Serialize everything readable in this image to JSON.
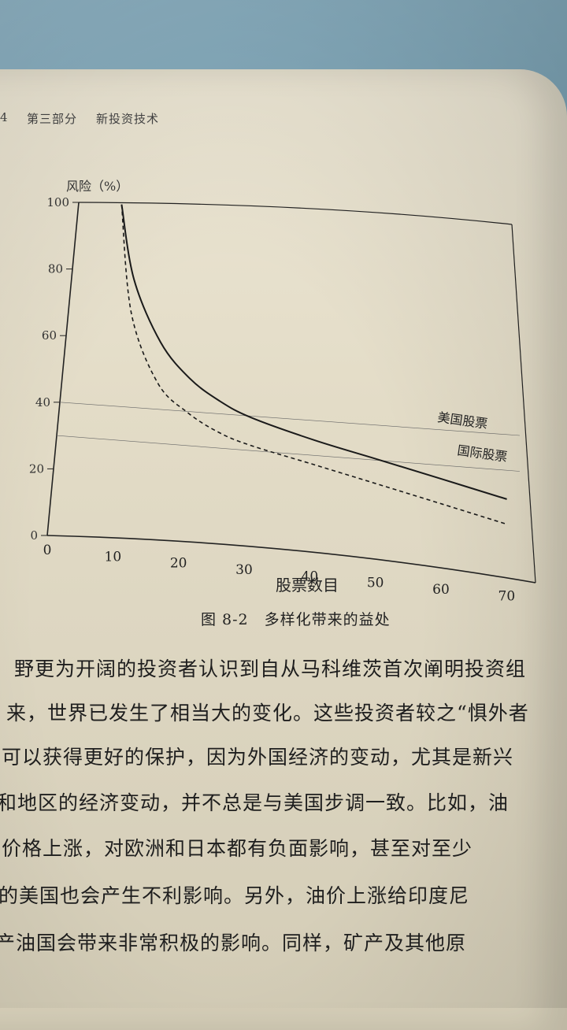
{
  "header": {
    "page_number": "4",
    "part": "第三部分",
    "chapter": "新投资技术"
  },
  "figure": {
    "caption_number": "图 8-2",
    "caption_title": "多样化带来的益处"
  },
  "chart_data": {
    "type": "line",
    "ylabel": "风险（%）",
    "xlabel": "股票数目",
    "xlim": [
      0,
      72
    ],
    "ylim": [
      0,
      100
    ],
    "x_ticks": [
      "0",
      "10",
      "20",
      "30",
      "40",
      "50",
      "60",
      "70"
    ],
    "y_ticks": [
      "0",
      "20",
      "40",
      "60",
      "80",
      "100"
    ],
    "grid": "horizontal at 30 and 40",
    "series": [
      {
        "name": "美国股票",
        "style": "solid",
        "x": [
          7,
          10,
          15,
          20,
          25,
          30,
          40,
          50,
          60,
          70
        ],
        "values": [
          100,
          78,
          60,
          50,
          44,
          40,
          35,
          31,
          27,
          23
        ]
      },
      {
        "name": "国际股票",
        "style": "dashed",
        "x": [
          7,
          10,
          15,
          20,
          25,
          30,
          40,
          50,
          60,
          70
        ],
        "values": [
          100,
          68,
          48,
          40,
          35,
          32,
          28,
          24,
          20,
          16
        ]
      }
    ]
  },
  "body": {
    "lines": [
      "野更为开阔的投资者认识到自从马科维茨首次阐明投资组",
      "来，世界已发生了相当大的变化。这些投资者较之“惧外者",
      "可以获得更好的保护，因为外国经济的变动，尤其是新兴",
      "和地区的经济变动，并不总是与美国步调一致。比如，油",
      "价格上涨，对欧洲和日本都有负面影响，甚至对至少",
      "的美国也会产生不利影响。另外，油价上涨给印度尼",
      "产油国会带来非常积极的影响。同样，矿产及其他原"
    ]
  }
}
